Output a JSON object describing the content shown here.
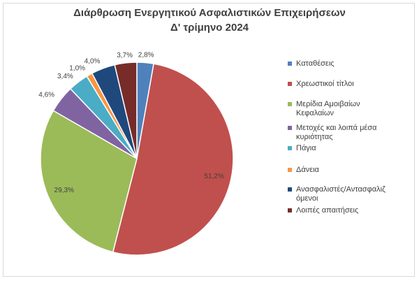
{
  "chart_data": {
    "type": "pie",
    "title_lines": [
      "Διάρθρωση Ενεργητικού Ασφαλιστικών Επιχειρήσεων",
      "Δ' τρίμηνο 2024"
    ],
    "categories": [
      "Καταθέσεις",
      "Χρεωστικοί τίτλοι",
      "Μερίδια Αμοιβαίων\nΚεφαλαίων",
      "Μετοχές και λοιπά μέσα\nκυριότητας",
      "Πάγια",
      "Δάνεια",
      "Ανασφαλιστές/Αντασφαλιζ\nόμενοι",
      "Λοιπές απαιτήσεις"
    ],
    "values": [
      2.8,
      51.2,
      29.3,
      4.6,
      3.4,
      1.0,
      4.0,
      3.7
    ],
    "labels": [
      "2,8%",
      "51,2%",
      "29,3%",
      "4,6%",
      "3,4%",
      "1,0%",
      "4,0%",
      "3,7%"
    ],
    "colors": [
      "#4f81bd",
      "#c0504d",
      "#9bbb59",
      "#8064a2",
      "#4bacc6",
      "#f79646",
      "#1f497d",
      "#772c2a"
    ],
    "legend_position": "right"
  }
}
